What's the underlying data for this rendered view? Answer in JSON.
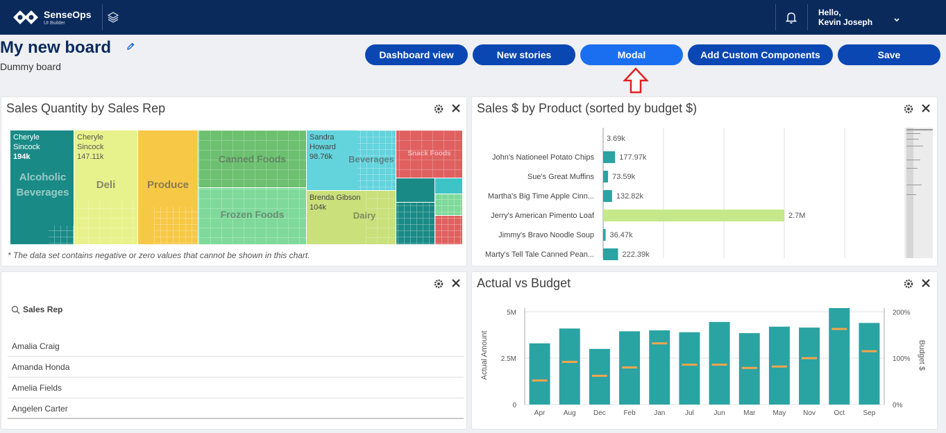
{
  "app": {
    "brand": "SenseOps",
    "brand_sub": "UI Builder",
    "greeting": "Hello,",
    "user": "Kevin Joseph"
  },
  "board": {
    "title": "My new board",
    "subtitle": "Dummy board"
  },
  "toolbar": {
    "dashboard": "Dashboard view",
    "stories": "New stories",
    "modal": "Modal",
    "custom": "Add Custom Components",
    "save": "Save"
  },
  "treemap": {
    "title": "Sales Quantity by Sales Rep",
    "note": "* The data set contains negative or zero values that cannot be shown in this chart.",
    "cells": [
      {
        "rep": "Cheryle Sincock",
        "value": "194k",
        "category": "Alcoholic Beverages",
        "color": "#1a8a86"
      },
      {
        "rep": "Cheryle Sincock",
        "value": "147.11k",
        "category": "Deli",
        "color": "#e8f28c"
      },
      {
        "rep": "",
        "value": "",
        "category": "Produce",
        "color": "#f7c846"
      },
      {
        "rep": "",
        "value": "",
        "category": "Canned Foods",
        "color": "#6cc070"
      },
      {
        "rep": "",
        "value": "",
        "category": "Frozen Foods",
        "color": "#7fd99a"
      },
      {
        "rep": "Sandra Howard",
        "value": "98.76k",
        "category": "Beverages",
        "color": "#63d3dc"
      },
      {
        "rep": "Brenda Gibson",
        "value": "104k",
        "category": "Dairy",
        "color": "#c9e07b"
      },
      {
        "rep": "",
        "value": "",
        "category": "Snack Foods",
        "color": "#e06060"
      }
    ]
  },
  "sales_by_product": {
    "title": "Sales $ by Product (sorted by budget $)",
    "top_value": "3.69k",
    "chart_data": {
      "type": "bar",
      "orientation": "horizontal",
      "categories": [
        "John's Nationeel Potato Chips",
        "Sue's Great Muffins",
        "Martha's Big Time Apple Cinn...",
        "Jerry's American Pimento Loaf",
        "Jimmy's Bravo Noodle Soup",
        "Marty's Tell Tale Canned Pean..."
      ],
      "values": [
        177970,
        73590,
        132820,
        2700000,
        36470,
        222390
      ],
      "labels": [
        "177.97k",
        "73.59k",
        "132.82k",
        "2.7M",
        "36.47k",
        "222.39k"
      ],
      "colors": [
        "#2aa3a3",
        "#2aa3a3",
        "#2aa3a3",
        "#c5e88a",
        "#2aa3a3",
        "#2aa3a3"
      ],
      "xlim": [
        0,
        4500000
      ]
    }
  },
  "filter": {
    "search_label": "Sales Rep",
    "items": [
      "Amalia Craig",
      "Amanda Honda",
      "Amelia Fields",
      "Angelen Carter"
    ]
  },
  "actual_vs_budget": {
    "title": "Actual vs Budget",
    "chart_data": {
      "type": "bar",
      "categories": [
        "Apr",
        "Aug",
        "Dec",
        "Feb",
        "Jan",
        "Jul",
        "Jun",
        "Mar",
        "May",
        "Nov",
        "Oct",
        "Sep"
      ],
      "series": [
        {
          "name": "Actual Amount",
          "type": "bar",
          "values": [
            3.3,
            4.1,
            3.0,
            3.95,
            4.0,
            3.9,
            4.45,
            3.85,
            4.2,
            4.15,
            5.2,
            4.4
          ]
        },
        {
          "name": "Budget $",
          "type": "marker",
          "values": [
            52,
            92,
            62,
            80,
            132,
            86,
            86,
            79,
            82,
            100,
            163,
            115
          ]
        }
      ],
      "ylabel": "Actual Amount",
      "y2label": "Budget $",
      "yticks": [
        "0",
        "2.5M",
        "5M"
      ],
      "y2ticks": [
        "0%",
        "100%",
        "200%"
      ],
      "ylim": [
        0,
        5.2
      ],
      "y2lim": [
        0,
        200
      ]
    }
  }
}
